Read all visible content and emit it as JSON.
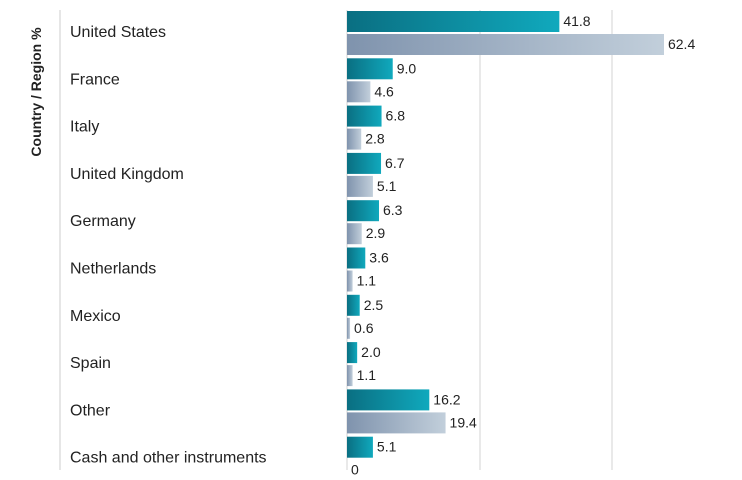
{
  "chart_data": {
    "type": "bar",
    "orientation": "horizontal",
    "ylabel": "Country / Region %",
    "categories": [
      "United States",
      "France",
      "Italy",
      "United Kingdom",
      "Germany",
      "Netherlands",
      "Mexico",
      "Spain",
      "Other",
      "Cash and other instruments"
    ],
    "series": [
      {
        "values": [
          41.8,
          9.0,
          6.8,
          6.7,
          6.3,
          3.6,
          2.5,
          2.0,
          16.2,
          5.1
        ],
        "labels": [
          "41.8",
          "9.0",
          "6.8",
          "6.7",
          "6.3",
          "3.6",
          "2.5",
          "2.0",
          "16.2",
          "5.1"
        ],
        "color": "#0a8ea0"
      },
      {
        "values": [
          62.4,
          4.6,
          2.8,
          5.1,
          2.9,
          1.1,
          0.6,
          1.1,
          19.4,
          0
        ],
        "labels": [
          "62.4",
          "4.6",
          "2.8",
          "5.1",
          "2.9",
          "1.1",
          "0.6",
          "1.1",
          "19.4",
          "0"
        ],
        "color": "#9aabbf"
      }
    ],
    "xlim": [
      0,
      70
    ],
    "grid": true,
    "legend": "none"
  }
}
